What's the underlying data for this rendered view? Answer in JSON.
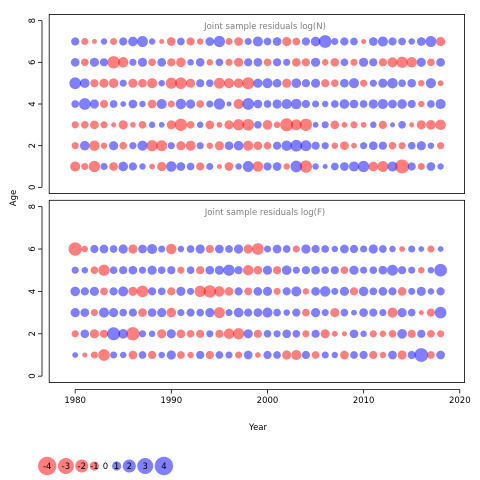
{
  "colors": {
    "positive": "#0000ff",
    "negative": "#ff0000",
    "frame": "#000000",
    "title": "#808080"
  },
  "chart_data": {
    "type": "scatter",
    "subtype": "bubble-residuals",
    "xlabel": "Year",
    "ylabel": "Age",
    "xlim": [
      1977.3,
      2020.5
    ],
    "x_ticks": [
      1980,
      1990,
      2000,
      2010,
      2020
    ],
    "years": [
      1980,
      2018
    ],
    "ages": [
      1,
      2,
      3,
      4,
      5,
      6,
      7
    ],
    "panels": [
      {
        "title": "Joint sample residuals log(N)",
        "ylim": [
          -0.3,
          8.3
        ],
        "y_ticks": [
          0,
          2,
          4,
          6,
          8
        ],
        "residuals_by_age": {
          "1": [
            -1.2,
            -0.6,
            -1.5,
            0.6,
            -0.9,
            1.1,
            0.8,
            0.5,
            -0.4,
            -1.0,
            1.3,
            0.9,
            0.7,
            -0.8,
            0.6,
            -0.3,
            -0.9,
            0.5,
            1.4,
            -1.3,
            0.8,
            0.9,
            -0.5,
            1.6,
            -1.8,
            0.5,
            0.3,
            0.7,
            0.9,
            1.2,
            1.5,
            -1.1,
            -1.4,
            1.2,
            -2.3,
            0.8,
            -0.6,
            0.9,
            0.5
          ],
          "2": [
            -0.6,
            1.1,
            -1.3,
            -0.5,
            1.0,
            -0.7,
            0.6,
            1.2,
            -1.5,
            -1.4,
            0.6,
            -1.0,
            -1.2,
            0.6,
            -0.5,
            -1.0,
            0.9,
            1.1,
            -1.2,
            -0.9,
            -0.7,
            0.8,
            1.3,
            1.6,
            1.4,
            0.8,
            0.6,
            -0.5,
            -0.9,
            -0.4,
            0.6,
            0.9,
            0.8,
            -0.7,
            -0.6,
            0.7,
            1.0,
            0.5,
            -0.6
          ],
          "3": [
            -0.6,
            -0.7,
            -0.9,
            -0.6,
            -0.3,
            -1.0,
            -0.4,
            -0.7,
            0.5,
            0.4,
            -1.0,
            -1.8,
            -0.7,
            0.5,
            -0.9,
            -0.4,
            -1.0,
            -1.5,
            -1.6,
            0.7,
            -1.1,
            -0.5,
            -2.0,
            -1.4,
            -1.8,
            0.4,
            0.6,
            -0.9,
            -0.4,
            -0.6,
            -0.4,
            0.5,
            -0.8,
            0.3,
            0.7,
            -0.3,
            -1.0,
            -1.1,
            -1.3
          ],
          "4": [
            0.7,
            1.6,
            1.0,
            -0.8,
            0.7,
            0.4,
            0.9,
            0.5,
            -0.9,
            1.2,
            -0.6,
            1.3,
            1.0,
            -0.7,
            0.6,
            1.5,
            0.3,
            -1.2,
            1.6,
            0.9,
            0.7,
            1.0,
            1.2,
            1.3,
            0.8,
            0.6,
            0.5,
            0.7,
            1.1,
            0.9,
            0.7,
            1.0,
            1.2,
            0.9,
            1.1,
            0.8,
            -0.5,
            0.7,
            1.2
          ],
          "5": [
            1.6,
            1.1,
            -0.8,
            -1.0,
            -1.1,
            0.6,
            -1.0,
            -0.9,
            -1.2,
            0.5,
            -1.5,
            -1.6,
            -1.0,
            0.8,
            0.7,
            -1.4,
            -1.2,
            -1.1,
            -1.7,
            1.0,
            1.2,
            0.9,
            -1.0,
            1.1,
            0.8,
            1.0,
            -0.8,
            -0.7,
            0.9,
            1.2,
            -0.6,
            0.6,
            1.0,
            1.3,
            0.7,
            0.9,
            -0.5,
            1.2,
            -0.4
          ],
          "6": [
            0.9,
            -0.7,
            1.0,
            0.8,
            -1.8,
            -1.3,
            0.6,
            1.0,
            -0.7,
            0.9,
            -0.8,
            -1.1,
            0.5,
            0.9,
            -0.5,
            0.7,
            -0.6,
            -1.0,
            0.8,
            0.9,
            -0.7,
            0.8,
            0.6,
            -0.9,
            -0.8,
            1.0,
            -0.5,
            -0.9,
            0.7,
            -0.6,
            1.0,
            0.8,
            -0.8,
            -1.2,
            -1.5,
            -1.3,
            1.0,
            -0.7,
            0.9
          ],
          "7": [
            0.8,
            -0.6,
            -0.3,
            0.5,
            -0.6,
            0.8,
            1.1,
            1.4,
            0.5,
            -0.3,
            -0.9,
            0.7,
            -0.8,
            -0.5,
            0.9,
            1.5,
            -0.6,
            -0.9,
            0.6,
            1.2,
            0.7,
            0.9,
            -1.0,
            -0.7,
            0.8,
            1.1,
            1.9,
            0.6,
            0.8,
            0.7,
            -0.3,
            0.9,
            1.2,
            0.8,
            0.7,
            0.5,
            0.9,
            1.4,
            -1.0
          ]
        }
      },
      {
        "title": "Joint sample residuals log(F)",
        "ylim": [
          -0.3,
          8.3
        ],
        "y_ticks": [
          0,
          2,
          4,
          6,
          8
        ],
        "residuals_by_age": {
          "1": [
            0.4,
            -0.3,
            -0.6,
            -1.6,
            0.6,
            0.5,
            -0.9,
            0.7,
            -0.8,
            0.5,
            1.0,
            -0.7,
            -0.5,
            0.8,
            -0.8,
            0.7,
            0.6,
            -0.6,
            0.9,
            -0.4,
            0.8,
            0.7,
            -1.0,
            -1.2,
            0.8,
            -0.7,
            0.6,
            0.5,
            -0.9,
            0.7,
            0.8,
            -0.8,
            -0.5,
            0.9,
            -1.0,
            0.8,
            2.2,
            -0.7,
            0.9
          ],
          "2": [
            -0.6,
            0.9,
            -1.0,
            -0.8,
            2.0,
            1.1,
            -2.1,
            0.6,
            0.5,
            -1.0,
            1.0,
            -0.9,
            -0.7,
            -0.8,
            0.6,
            -0.8,
            -1.3,
            -1.5,
            1.0,
            -0.8,
            0.7,
            0.6,
            0.9,
            0.7,
            -0.6,
            0.8,
            -1.0,
            -0.4,
            -0.3,
            0.9,
            0.5,
            -0.6,
            -0.5,
            -0.7,
            1.1,
            -0.8,
            0.8,
            -0.7,
            -0.6
          ],
          "3": [
            1.0,
            0.9,
            -0.6,
            1.2,
            1.0,
            0.7,
            0.8,
            -0.9,
            0.9,
            1.0,
            -1.1,
            0.6,
            0.8,
            0.7,
            1.0,
            -1.4,
            0.6,
            1.1,
            0.8,
            0.9,
            1.2,
            0.7,
            0.5,
            0.8,
            -0.7,
            1.0,
            0.6,
            -1.0,
            0.7,
            0.4,
            0.9,
            0.8,
            0.6,
            -1.2,
            1.0,
            0.7,
            -0.3,
            -0.8,
            1.6
          ],
          "4": [
            1.1,
            0.8,
            1.0,
            -0.7,
            0.8,
            1.2,
            -1.0,
            -1.6,
            0.8,
            0.7,
            -0.8,
            1.0,
            0.6,
            -1.5,
            -1.8,
            -1.3,
            -0.9,
            0.8,
            -0.7,
            0.9,
            1.0,
            -0.6,
            0.8,
            1.2,
            -0.5,
            0.9,
            1.3,
            0.6,
            1.0,
            -0.8,
            1.1,
            0.7,
            0.9,
            0.8,
            -0.9,
            0.6,
            1.0,
            0.5,
            0.8
          ],
          "5": [
            0.6,
            0.5,
            -0.7,
            -1.5,
            0.7,
            0.8,
            0.9,
            0.6,
            1.0,
            0.7,
            0.8,
            -0.6,
            0.7,
            -0.8,
            0.9,
            1.0,
            1.5,
            0.8,
            -1.3,
            -0.9,
            1.0,
            -0.8,
            1.1,
            0.6,
            0.8,
            0.9,
            0.7,
            0.8,
            -0.7,
            1.0,
            0.6,
            0.7,
            0.9,
            1.4,
            0.8,
            0.6,
            -0.5,
            0.5,
            1.9
          ],
          "6": [
            -2.1,
            -0.5,
            0.8,
            0.9,
            0.7,
            1.0,
            -1.0,
            0.9,
            1.2,
            0.6,
            -1.3,
            0.5,
            0.7,
            1.0,
            -0.8,
            0.9,
            0.7,
            1.0,
            -1.0,
            -1.6,
            0.6,
            0.9,
            0.7,
            -0.6,
            1.0,
            0.8,
            0.7,
            0.5,
            0.9,
            0.8,
            0.6,
            1.0,
            0.7,
            0.5,
            -0.4,
            0.6,
            0.4,
            -0.6,
            0.4
          ],
          "7": []
        }
      }
    ],
    "legend": {
      "values": [
        -4,
        -3,
        -2,
        -1,
        0,
        1,
        2,
        3,
        4
      ],
      "placement": "bottom-left"
    }
  }
}
